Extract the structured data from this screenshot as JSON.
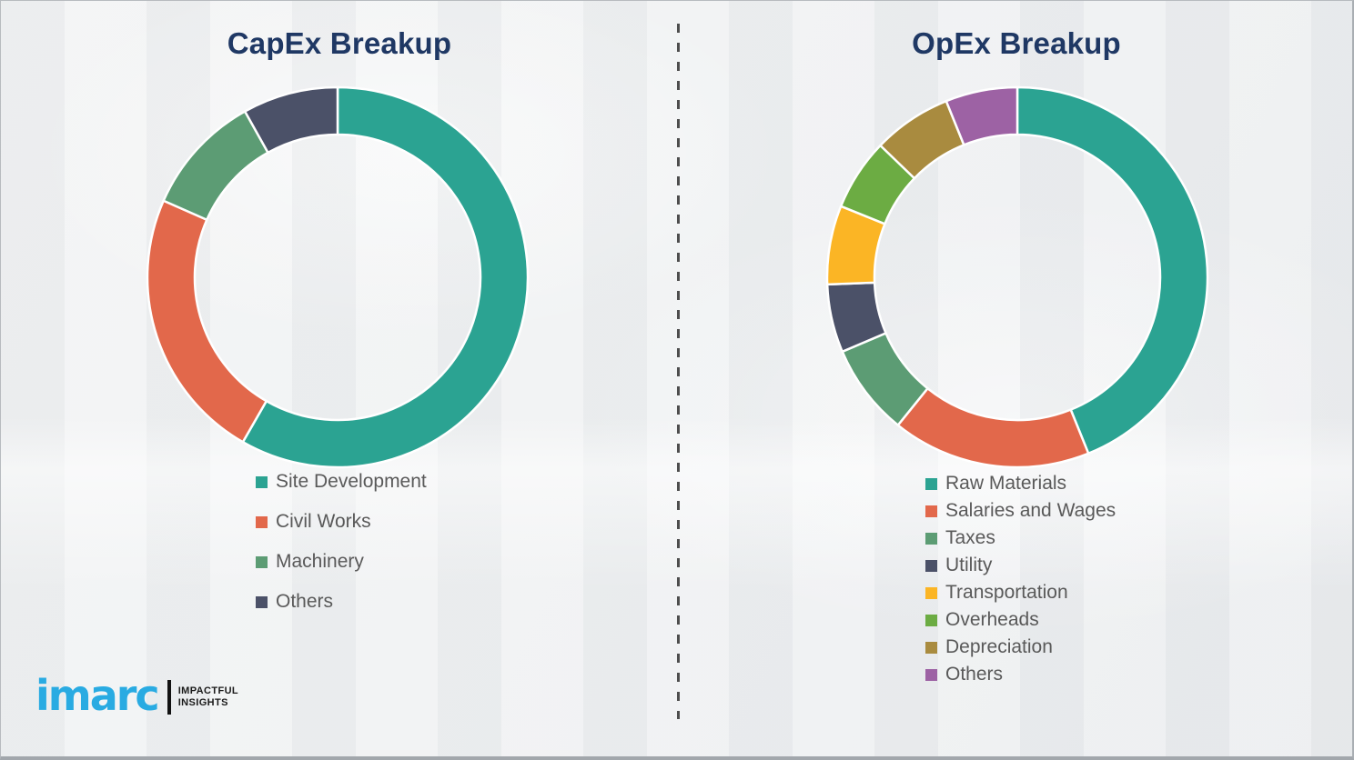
{
  "chart_data": [
    {
      "type": "pie",
      "donut": true,
      "title": "CapEx Breakup",
      "legend_position": "below-chart-left",
      "values_unit": "percent-estimated-from-arc-angles",
      "segments": [
        {
          "label": "Site Development",
          "value": 58.3,
          "color": "#2BA392"
        },
        {
          "label": "Civil Works",
          "value": 23.3,
          "color": "#E2684B"
        },
        {
          "label": "Machinery",
          "value": 10.3,
          "color": "#5C9C74"
        },
        {
          "label": "Others",
          "value": 8.1,
          "color": "#4B5168"
        }
      ]
    },
    {
      "type": "pie",
      "donut": true,
      "title": "OpEx Breakup",
      "legend_position": "below-chart-left",
      "values_unit": "percent-estimated-from-arc-angles",
      "segments": [
        {
          "label": "Raw Materials",
          "value": 43.9,
          "color": "#2BA392"
        },
        {
          "label": "Salaries and Wages",
          "value": 16.9,
          "color": "#E2684B"
        },
        {
          "label": "Taxes",
          "value": 7.8,
          "color": "#5C9C74"
        },
        {
          "label": "Utility",
          "value": 5.8,
          "color": "#4B5168"
        },
        {
          "label": "Transportation",
          "value": 6.7,
          "color": "#FBB525"
        },
        {
          "label": "Overheads",
          "value": 6.1,
          "color": "#6CAC43"
        },
        {
          "label": "Depreciation",
          "value": 6.7,
          "color": "#A98B3F"
        },
        {
          "label": "Others",
          "value": 6.1,
          "color": "#9D62A4"
        }
      ]
    }
  ],
  "styles": {
    "title_color": "#1F3864",
    "legend_text_color": "#595959",
    "segment_gap_color": "#FFFFFF",
    "divider_color": "#4D4D4D"
  },
  "logo": {
    "brand": "imarc",
    "tagline_line1": "IMPACTFUL",
    "tagline_line2": "INSIGHTS",
    "brand_color": "#29ABE2",
    "tagline_color": "#1A1A1A"
  }
}
